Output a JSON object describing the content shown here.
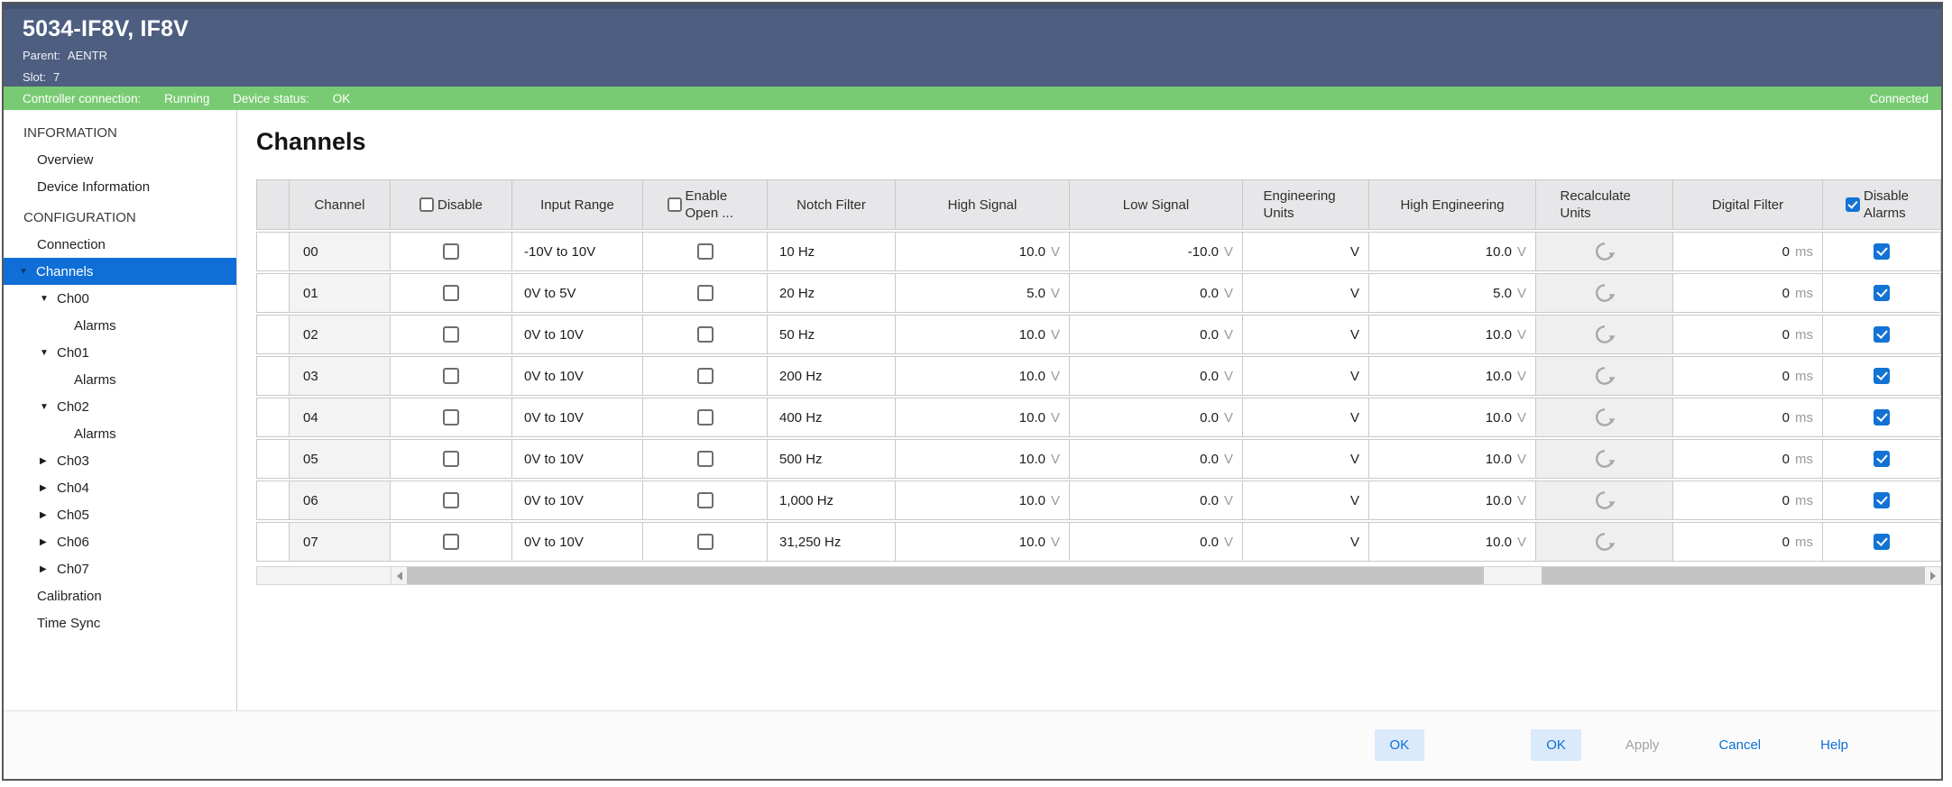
{
  "window": {
    "title": "5034-IF8V, IF8V",
    "parent_label": "Parent:",
    "parent_value": "AENTR",
    "slot_label": "Slot:",
    "slot_value": "7"
  },
  "status_bar": {
    "controller_label": "Controller connection:",
    "controller_value": "Running",
    "device_label": "Device status:",
    "device_value": "OK",
    "connection_state": "Connected"
  },
  "colors": {
    "titlebar_bg": "#4d5e80",
    "status_bg": "#78cb72",
    "selected_item_bg": "#0f6fd7",
    "checkbox_checked": "#1273d4",
    "link_blue": "#0e6fd3"
  },
  "sidebar": {
    "sections": [
      {
        "header": "INFORMATION",
        "items": [
          {
            "label": "Overview",
            "level": 0
          },
          {
            "label": "Device Information",
            "level": 0
          }
        ]
      },
      {
        "header": "CONFIGURATION",
        "items": [
          {
            "label": "Connection",
            "level": 0
          },
          {
            "label": "Channels",
            "level": 0,
            "arrow": "down",
            "selected": true
          },
          {
            "label": "Ch00",
            "level": 1,
            "arrow": "down"
          },
          {
            "label": "Alarms",
            "level": 2
          },
          {
            "label": "Ch01",
            "level": 1,
            "arrow": "down"
          },
          {
            "label": "Alarms",
            "level": 2
          },
          {
            "label": "Ch02",
            "level": 1,
            "arrow": "down"
          },
          {
            "label": "Alarms",
            "level": 2
          },
          {
            "label": "Ch03",
            "level": 1,
            "arrow": "right"
          },
          {
            "label": "Ch04",
            "level": 1,
            "arrow": "right"
          },
          {
            "label": "Ch05",
            "level": 1,
            "arrow": "right"
          },
          {
            "label": "Ch06",
            "level": 1,
            "arrow": "right"
          },
          {
            "label": "Ch07",
            "level": 1,
            "arrow": "right"
          },
          {
            "label": "Calibration",
            "level": 0
          },
          {
            "label": "Time Sync",
            "level": 0
          }
        ]
      }
    ]
  },
  "main": {
    "title": "Channels",
    "table": {
      "columns": [
        {
          "label": ""
        },
        {
          "label": "Channel"
        },
        {
          "label": "Disable",
          "checkbox": "unchecked"
        },
        {
          "label": "Input Range"
        },
        {
          "label": "Enable Open ...",
          "checkbox": "unchecked"
        },
        {
          "label": "Notch Filter"
        },
        {
          "label": "High Signal"
        },
        {
          "label": "Low Signal"
        },
        {
          "label": "Engineering Units"
        },
        {
          "label": "High Engineering"
        },
        {
          "label": "Recalculate Units"
        },
        {
          "label": "Digital Filter"
        },
        {
          "label": "Disable Alarms",
          "checkbox": "checked"
        }
      ],
      "units": {
        "signal": "V",
        "digital_filter": "ms"
      },
      "rows": [
        {
          "channel": "00",
          "disable": false,
          "input_range": "-10V to 10V",
          "enable_open": false,
          "notch_filter": "10 Hz",
          "high_signal": "10.0",
          "low_signal": "-10.0",
          "engineering_units": "V",
          "high_engineering": "10.0",
          "digital_filter": "0",
          "disable_alarms": true
        },
        {
          "channel": "01",
          "disable": false,
          "input_range": "0V to 5V",
          "enable_open": false,
          "notch_filter": "20 Hz",
          "high_signal": "5.0",
          "low_signal": "0.0",
          "engineering_units": "V",
          "high_engineering": "5.0",
          "digital_filter": "0",
          "disable_alarms": true
        },
        {
          "channel": "02",
          "disable": false,
          "input_range": "0V to 10V",
          "enable_open": false,
          "notch_filter": "50 Hz",
          "high_signal": "10.0",
          "low_signal": "0.0",
          "engineering_units": "V",
          "high_engineering": "10.0",
          "digital_filter": "0",
          "disable_alarms": true
        },
        {
          "channel": "03",
          "disable": false,
          "input_range": "0V to 10V",
          "enable_open": false,
          "notch_filter": "200 Hz",
          "high_signal": "10.0",
          "low_signal": "0.0",
          "engineering_units": "V",
          "high_engineering": "10.0",
          "digital_filter": "0",
          "disable_alarms": true
        },
        {
          "channel": "04",
          "disable": false,
          "input_range": "0V to 10V",
          "enable_open": false,
          "notch_filter": "400 Hz",
          "high_signal": "10.0",
          "low_signal": "0.0",
          "engineering_units": "V",
          "high_engineering": "10.0",
          "digital_filter": "0",
          "disable_alarms": true
        },
        {
          "channel": "05",
          "disable": false,
          "input_range": "0V to 10V",
          "enable_open": false,
          "notch_filter": "500 Hz",
          "high_signal": "10.0",
          "low_signal": "0.0",
          "engineering_units": "V",
          "high_engineering": "10.0",
          "digital_filter": "0",
          "disable_alarms": true
        },
        {
          "channel": "06",
          "disable": false,
          "input_range": "0V to 10V",
          "enable_open": false,
          "notch_filter": "1,000 Hz",
          "high_signal": "10.0",
          "low_signal": "0.0",
          "engineering_units": "V",
          "high_engineering": "10.0",
          "digital_filter": "0",
          "disable_alarms": true
        },
        {
          "channel": "07",
          "disable": false,
          "input_range": "0V to 10V",
          "enable_open": false,
          "notch_filter": "31,250 Hz",
          "high_signal": "10.0",
          "low_signal": "0.0",
          "engineering_units": "V",
          "high_engineering": "10.0",
          "digital_filter": "0",
          "disable_alarms": true
        }
      ]
    }
  },
  "footer": {
    "buttons": [
      {
        "label": "OK",
        "style": "primary"
      },
      {
        "label": "OK",
        "style": "primary"
      },
      {
        "label": "Apply",
        "style": "disabled"
      },
      {
        "label": "Cancel",
        "style": "link"
      },
      {
        "label": "Help",
        "style": "link"
      }
    ]
  }
}
